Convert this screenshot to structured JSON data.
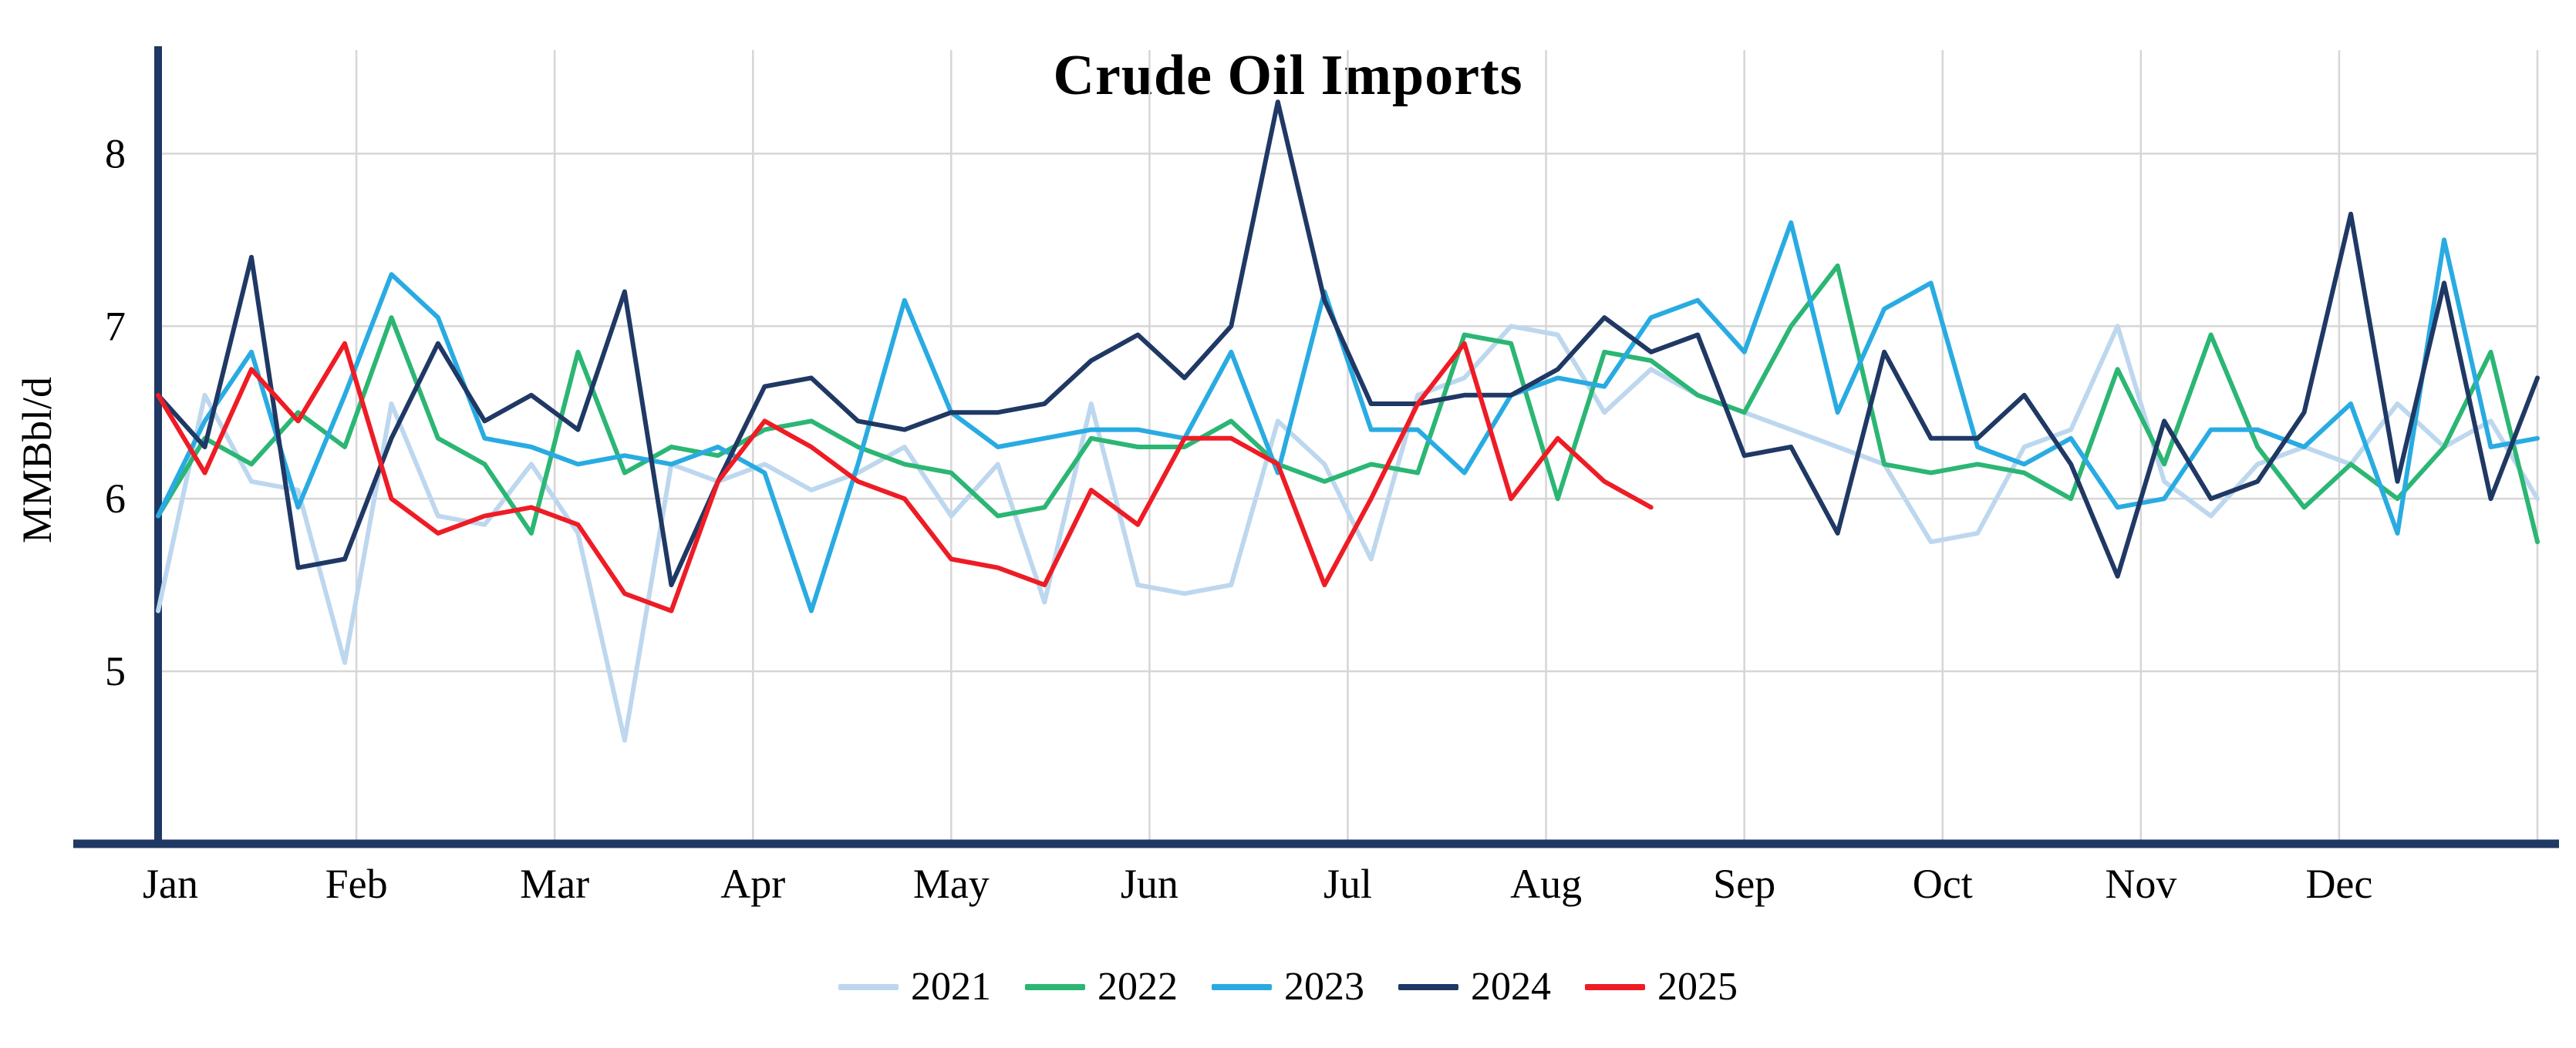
{
  "chart_data": {
    "type": "line",
    "title": "Crude Oil Imports",
    "ylabel": "MMBbl/d",
    "xlabel": "",
    "x_unit": "week of year",
    "months": [
      "Jan",
      "Feb",
      "Mar",
      "Apr",
      "May",
      "Jun",
      "Jul",
      "Aug",
      "Sep",
      "Oct",
      "Nov",
      "Dec"
    ],
    "yticks": [
      5,
      6,
      7,
      8
    ],
    "ylim": [
      4.0,
      8.6
    ],
    "grid": true,
    "legend_position": "bottom",
    "axis_color": "#1f3864",
    "grid_color": "#d6d6d6",
    "series": [
      {
        "name": "2021",
        "color": "#bdd7ee",
        "values": [
          5.35,
          6.6,
          6.1,
          6.05,
          5.05,
          6.55,
          5.9,
          5.85,
          6.2,
          5.8,
          4.6,
          6.2,
          6.1,
          6.2,
          6.05,
          6.15,
          6.3,
          5.9,
          6.2,
          5.4,
          6.55,
          5.5,
          5.45,
          5.5,
          6.45,
          6.2,
          5.65,
          6.6,
          6.7,
          7.0,
          6.95,
          6.5,
          6.75,
          6.6,
          6.5,
          6.4,
          6.3,
          6.2,
          5.75,
          5.8,
          6.3,
          6.4,
          7.0,
          6.1,
          5.9,
          6.2,
          6.3,
          6.2,
          6.55,
          6.3,
          6.45,
          6.0
        ]
      },
      {
        "name": "2022",
        "color": "#2bb673",
        "values": [
          5.9,
          6.35,
          6.2,
          6.5,
          6.3,
          7.05,
          6.35,
          6.2,
          5.8,
          6.85,
          6.15,
          6.3,
          6.25,
          6.4,
          6.45,
          6.3,
          6.2,
          6.15,
          5.9,
          5.95,
          6.35,
          6.3,
          6.3,
          6.45,
          6.2,
          6.1,
          6.2,
          6.15,
          6.95,
          6.9,
          6.0,
          6.85,
          6.8,
          6.6,
          6.5,
          7.0,
          7.35,
          6.2,
          6.15,
          6.2,
          6.15,
          6.0,
          6.75,
          6.2,
          6.95,
          6.3,
          5.95,
          6.2,
          6.0,
          6.3,
          6.85,
          5.75
        ]
      },
      {
        "name": "2023",
        "color": "#29abe2",
        "values": [
          5.9,
          6.45,
          6.85,
          5.95,
          6.6,
          7.3,
          7.05,
          6.35,
          6.3,
          6.2,
          6.25,
          6.2,
          6.3,
          6.15,
          5.35,
          6.2,
          7.15,
          6.5,
          6.3,
          6.35,
          6.4,
          6.4,
          6.35,
          6.85,
          6.15,
          7.2,
          6.4,
          6.4,
          6.15,
          6.6,
          6.7,
          6.65,
          7.05,
          7.15,
          6.85,
          7.6,
          6.5,
          7.1,
          7.25,
          6.3,
          6.2,
          6.35,
          5.95,
          6.0,
          6.4,
          6.4,
          6.3,
          6.55,
          5.8,
          7.5,
          6.3,
          6.35
        ]
      },
      {
        "name": "2024",
        "color": "#1f3864",
        "values": [
          6.6,
          6.3,
          7.4,
          5.6,
          5.65,
          6.35,
          6.9,
          6.45,
          6.6,
          6.4,
          7.2,
          5.5,
          6.1,
          6.65,
          6.7,
          6.45,
          6.4,
          6.5,
          6.5,
          6.55,
          6.8,
          6.95,
          6.7,
          7.0,
          8.3,
          7.15,
          6.55,
          6.55,
          6.6,
          6.6,
          6.75,
          7.05,
          6.85,
          6.95,
          6.25,
          6.3,
          5.8,
          6.85,
          6.35,
          6.35,
          6.6,
          6.2,
          5.55,
          6.45,
          6.0,
          6.1,
          6.5,
          7.65,
          6.1,
          7.25,
          6.0,
          6.7
        ]
      },
      {
        "name": "2025",
        "color": "#ee1c25",
        "values": [
          6.6,
          6.15,
          6.75,
          6.45,
          6.9,
          6.0,
          5.8,
          5.9,
          5.95,
          5.85,
          5.45,
          5.35,
          6.1,
          6.45,
          6.3,
          6.1,
          6.0,
          5.65,
          5.6,
          5.5,
          6.05,
          5.85,
          6.35,
          6.35,
          6.2,
          5.5,
          6.0,
          6.55,
          6.9,
          6.0,
          6.35,
          6.1,
          5.95
        ]
      }
    ]
  }
}
